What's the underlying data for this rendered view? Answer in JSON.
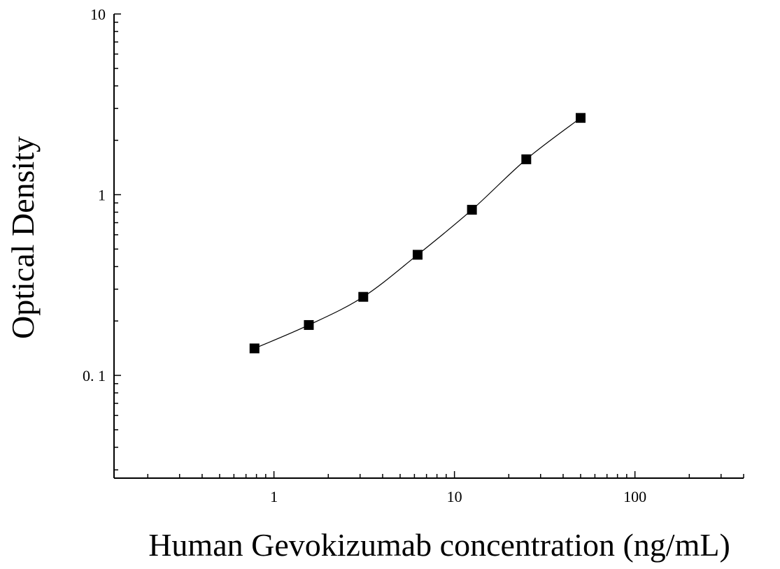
{
  "chart_data": {
    "type": "scatter",
    "title": "",
    "xlabel": "Human Gevokizumab concentration (ng/mL)",
    "ylabel": "Optical Density",
    "xscale": "log",
    "yscale": "log",
    "xlim": [
      0.13,
      400
    ],
    "ylim": [
      0.027,
      10
    ],
    "x_ticks": [
      {
        "value": 1,
        "label": "1"
      },
      {
        "value": 10,
        "label": "10"
      },
      {
        "value": 100,
        "label": "100"
      }
    ],
    "y_ticks": [
      {
        "value": 0.1,
        "label": "0. 1"
      },
      {
        "value": 1,
        "label": "1"
      },
      {
        "value": 10,
        "label": "10"
      }
    ],
    "grid": false,
    "legend": "none",
    "marker": "square",
    "marker_color": "#000000",
    "curve": "fitted smooth line through points",
    "series": [
      {
        "x": [
          0.78,
          1.56,
          3.125,
          6.25,
          12.5,
          25,
          50
        ],
        "y": [
          0.141,
          0.19,
          0.272,
          0.465,
          0.825,
          1.57,
          2.66
        ]
      }
    ]
  }
}
